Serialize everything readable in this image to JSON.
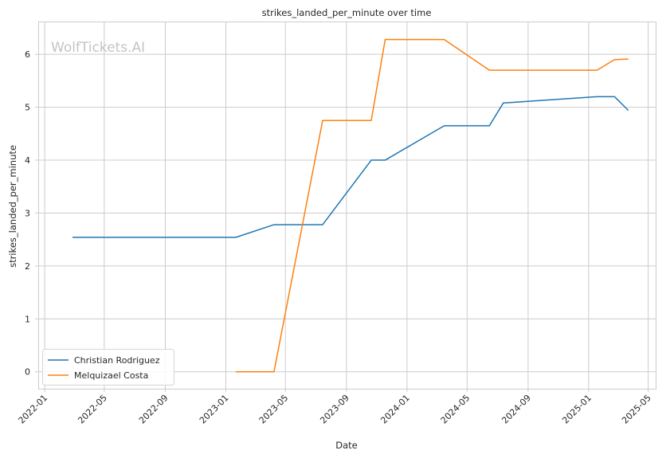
{
  "chart_data": {
    "type": "line",
    "title": "strikes_landed_per_minute over time",
    "xlabel": "Date",
    "ylabel": "strikes_landed_per_minute",
    "watermark": "WolfTickets.AI",
    "x_ticks": [
      "2022-01",
      "2022-05",
      "2022-09",
      "2023-01",
      "2023-05",
      "2023-09",
      "2024-01",
      "2024-05",
      "2024-09",
      "2025-01",
      "2025-05"
    ],
    "y_ticks": [
      0,
      1,
      2,
      3,
      4,
      5,
      6
    ],
    "xlim": [
      "2021-12-19",
      "2025-05-16"
    ],
    "ylim": [
      -0.32,
      6.62
    ],
    "grid": true,
    "legend_position": "lower-left",
    "series": [
      {
        "name": "Christian Rodriguez",
        "color": "#1f77b4",
        "points": [
          {
            "x": "2022-02-26",
            "y": 2.54
          },
          {
            "x": "2023-01-21",
            "y": 2.54
          },
          {
            "x": "2023-04-08",
            "y": 2.78
          },
          {
            "x": "2023-07-15",
            "y": 2.78
          },
          {
            "x": "2023-10-21",
            "y": 4.0
          },
          {
            "x": "2023-11-18",
            "y": 4.0
          },
          {
            "x": "2024-03-16",
            "y": 4.65
          },
          {
            "x": "2024-06-15",
            "y": 4.65
          },
          {
            "x": "2024-07-13",
            "y": 5.08
          },
          {
            "x": "2025-01-18",
            "y": 5.2
          },
          {
            "x": "2025-02-22",
            "y": 5.2
          },
          {
            "x": "2025-03-22",
            "y": 4.94
          }
        ]
      },
      {
        "name": "Melquizael Costa",
        "color": "#ff7f0e",
        "points": [
          {
            "x": "2023-01-21",
            "y": 0.0
          },
          {
            "x": "2023-04-08",
            "y": 0.0
          },
          {
            "x": "2023-07-15",
            "y": 4.75
          },
          {
            "x": "2023-10-21",
            "y": 4.75
          },
          {
            "x": "2023-11-18",
            "y": 6.28
          },
          {
            "x": "2024-03-16",
            "y": 6.28
          },
          {
            "x": "2024-06-15",
            "y": 5.7
          },
          {
            "x": "2025-01-18",
            "y": 5.7
          },
          {
            "x": "2025-02-22",
            "y": 5.9
          },
          {
            "x": "2025-03-22",
            "y": 5.91
          }
        ]
      }
    ]
  }
}
